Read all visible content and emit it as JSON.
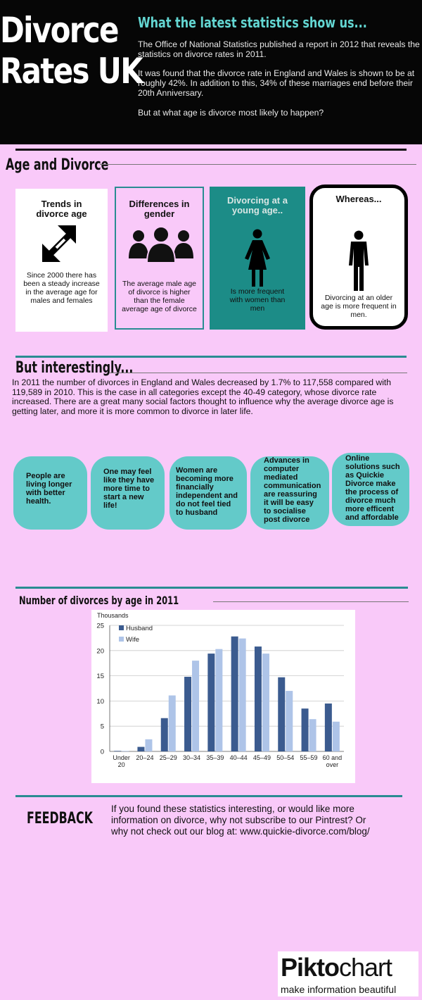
{
  "header": {
    "title_line1": "Divorce",
    "title_line2": "Rates UK",
    "subtitle": "What the latest statistics show us...",
    "paragraphs": [
      "The Office of National Statistics published a report in 2012 that reveals the statistics on divorce rates in 2011.",
      "It was found that the divorce rate in England and Wales is shown to be at roughly 42%. In addition to this, 34% of these marriages end before their 20th Anniversary.",
      "But at what age is divorce most likely to happen?"
    ]
  },
  "age_section": {
    "title": "Age and Divorce",
    "cards": [
      {
        "title": "Trends in divorce age",
        "text": "Since 2000 there has been a  steady increase in the average age for males and females",
        "icon": "expand-arrows-icon"
      },
      {
        "title": "Differences in gender",
        "text": "The average male age of divorce is higher than the female average age of divorce",
        "icon": "people-group-icon"
      },
      {
        "title": "Divorcing at a young age..",
        "text": "Is more frequent with women than men",
        "icon": "woman-icon"
      },
      {
        "title": "Whereas...",
        "text": "Divorcing at an older age is more frequent in men.",
        "icon": "man-icon"
      }
    ]
  },
  "interesting_section": {
    "title": "But interestingly...",
    "paragraph": "In 2011 the number of divorces in England and Wales decreased by 1.7% to 117,558 compared with 119,589 in 2010. This is the case in all categories except the 40-49 category, whose divorce rate increased. There are a great many social factors thought to influence why the average divorce age is getting later, and more it is more common to divorce in later life.",
    "bubbles": [
      "People are living longer with better health.",
      "One may feel like they have more time to start a new life!",
      "Women are becoming more financially independent and do not feel tied to husband",
      "Advances in computer mediated communication are reassuring it will be easy  to socialise post divorce",
      "Online solutions such as Quickie Divorce make the process of divorce much more efficent and affordable"
    ]
  },
  "chart_section": {
    "title": "Number of divorces by age in 2011"
  },
  "chart_data": {
    "type": "bar",
    "ylabel": "Thousands",
    "ylim": [
      0,
      25
    ],
    "yticks": [
      0,
      5,
      10,
      15,
      20,
      25
    ],
    "grid": true,
    "legend_position": "top-left",
    "categories": [
      "Under 20",
      "20–24",
      "25–29",
      "30–34",
      "35–39",
      "40–44",
      "45–49",
      "50–54",
      "55–59",
      "60 and over"
    ],
    "series": [
      {
        "name": "Husband",
        "color": "#3b5b8f",
        "values": [
          0.1,
          0.9,
          6.6,
          14.8,
          19.4,
          22.8,
          20.8,
          14.7,
          8.5,
          9.5
        ]
      },
      {
        "name": "Wife",
        "color": "#aec4e8",
        "values": [
          0.1,
          2.4,
          11.1,
          18.0,
          20.3,
          22.4,
          19.4,
          12.0,
          6.4,
          5.9
        ]
      }
    ]
  },
  "feedback": {
    "label": "FEEDBACK",
    "text": "If you found these statistics interesting, or would like more information on divorce, why not subscribe to our Pintrest?  Or why not check out our blog at: www.quickie-divorce.com/blog/"
  },
  "logo": {
    "name_bold": "Pikto",
    "name_regular": "chart",
    "tagline": "make information beautiful"
  },
  "colors": {
    "background": "#f9c9f9",
    "teal": "#63cac9",
    "dark_teal": "#1c8c87",
    "header_bg": "#060606"
  }
}
